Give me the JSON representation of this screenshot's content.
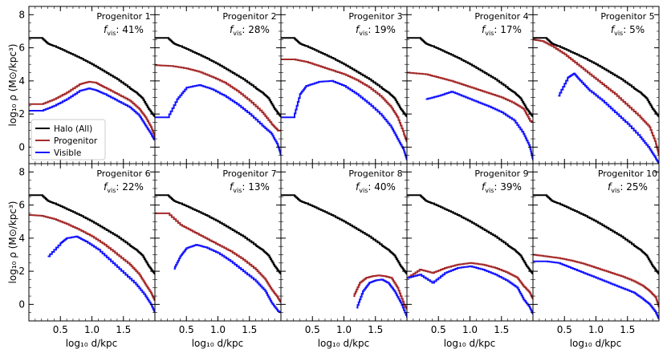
{
  "figure": {
    "ylabel": "log₁₀ ρ (M⊙/kpc³)",
    "xlabel": "log₁₀ d/kpc",
    "legend": {
      "placement": "lower-left of Progenitor 1 panel",
      "entries": [
        "Halo (All)",
        "Progenitor",
        "Visible"
      ]
    },
    "colors": {
      "halo": "#000000",
      "progenitor": "#a52a2a",
      "visible": "#1414ff"
    }
  },
  "chart_data": {
    "type": "line",
    "layout": "2 rows × 5 columns, shared axes",
    "xlim": [
      0.0,
      2.0
    ],
    "ylim": [
      -1.0,
      8.5
    ],
    "xticks": [
      0.5,
      1.0,
      1.5
    ],
    "xtick_labels": [
      "0.5",
      "1.0",
      "1.5"
    ],
    "yticks": [
      0,
      2,
      4,
      6,
      8
    ],
    "ytick_labels": [
      "0",
      "2",
      "4",
      "6",
      "8"
    ],
    "halo": {
      "x": [
        0.0,
        0.2,
        0.3,
        0.4,
        0.6,
        0.8,
        1.0,
        1.2,
        1.4,
        1.6,
        1.7,
        1.8,
        1.9,
        2.0
      ],
      "y": [
        6.6,
        6.6,
        6.25,
        6.1,
        5.75,
        5.4,
        5.0,
        4.55,
        4.1,
        3.55,
        3.3,
        2.95,
        2.3,
        1.8
      ]
    },
    "panels": [
      {
        "title": "Progenitor 1",
        "fvis": ": 41%",
        "progenitor": {
          "x": [
            0.0,
            0.2,
            0.4,
            0.6,
            0.8,
            0.95,
            1.05,
            1.2,
            1.4,
            1.6,
            1.75,
            1.85,
            1.95,
            2.0
          ],
          "y": [
            2.6,
            2.6,
            2.9,
            3.3,
            3.8,
            3.95,
            3.9,
            3.6,
            3.2,
            2.8,
            2.3,
            1.8,
            1.1,
            0.6
          ]
        },
        "visible": {
          "x": [
            0.0,
            0.2,
            0.4,
            0.6,
            0.8,
            0.95,
            1.05,
            1.2,
            1.4,
            1.6,
            1.75,
            1.85,
            1.95,
            2.0
          ],
          "y": [
            2.2,
            2.2,
            2.5,
            2.9,
            3.4,
            3.55,
            3.45,
            3.2,
            2.8,
            2.4,
            1.9,
            1.3,
            0.7,
            0.4
          ]
        }
      },
      {
        "title": "Progenitor 2",
        "fvis": ": 28%",
        "progenitor": {
          "x": [
            0.0,
            0.25,
            0.5,
            0.7,
            0.9,
            1.1,
            1.3,
            1.5,
            1.7,
            1.85,
            1.95,
            2.0
          ],
          "y": [
            4.95,
            4.9,
            4.75,
            4.55,
            4.25,
            3.9,
            3.4,
            2.8,
            2.1,
            1.4,
            1.0,
            1.0
          ]
        },
        "visible": {
          "x": [
            0.0,
            0.2,
            0.35,
            0.5,
            0.7,
            0.9,
            1.1,
            1.3,
            1.5,
            1.7,
            1.85,
            1.95,
            2.0
          ],
          "y": [
            1.8,
            1.8,
            2.9,
            3.6,
            3.75,
            3.5,
            3.1,
            2.6,
            2.0,
            1.3,
            0.8,
            0.1,
            -0.5
          ]
        }
      },
      {
        "title": "Progenitor 3",
        "fvis": ": 19%",
        "progenitor": {
          "x": [
            0.0,
            0.2,
            0.4,
            0.6,
            0.8,
            1.0,
            1.2,
            1.4,
            1.6,
            1.75,
            1.85,
            1.95,
            2.0
          ],
          "y": [
            5.3,
            5.3,
            5.15,
            4.9,
            4.65,
            4.4,
            4.05,
            3.6,
            3.0,
            2.4,
            1.8,
            0.8,
            0.3
          ]
        },
        "visible": {
          "x": [
            0.0,
            0.2,
            0.3,
            0.4,
            0.6,
            0.8,
            1.0,
            1.2,
            1.4,
            1.6,
            1.75,
            1.85,
            1.95,
            2.0
          ],
          "y": [
            1.8,
            1.8,
            3.2,
            3.7,
            3.95,
            4.0,
            3.7,
            3.2,
            2.6,
            1.9,
            1.2,
            0.5,
            -0.2,
            -0.8
          ]
        }
      },
      {
        "title": "Progenitor 4",
        "fvis": ": 17%",
        "progenitor": {
          "x": [
            0.0,
            0.3,
            0.5,
            0.7,
            0.9,
            1.1,
            1.3,
            1.5,
            1.7,
            1.85,
            1.95,
            2.0
          ],
          "y": [
            4.5,
            4.4,
            4.2,
            4.0,
            3.75,
            3.5,
            3.25,
            3.0,
            2.65,
            2.3,
            1.6,
            1.5
          ]
        },
        "visible": {
          "x": [
            0.3,
            0.5,
            0.7,
            0.9,
            1.1,
            1.3,
            1.5,
            1.7,
            1.85,
            1.95,
            2.0
          ],
          "y": [
            2.9,
            3.1,
            3.35,
            3.05,
            2.75,
            2.45,
            2.1,
            1.6,
            0.8,
            0.0,
            -0.8
          ]
        }
      },
      {
        "title": "Progenitor 5",
        "fvis": ": 5%",
        "progenitor": {
          "x": [
            0.0,
            0.15,
            0.3,
            0.5,
            0.7,
            0.9,
            1.1,
            1.3,
            1.5,
            1.7,
            1.85,
            1.95,
            2.0
          ],
          "y": [
            6.5,
            6.4,
            6.1,
            5.6,
            5.0,
            4.4,
            3.8,
            3.2,
            2.5,
            1.8,
            1.2,
            0.2,
            -0.5
          ]
        },
        "visible": {
          "x": [
            0.4,
            0.55,
            0.65,
            0.75,
            0.9,
            1.1,
            1.3,
            1.5,
            1.7,
            1.85,
            1.95,
            2.0
          ],
          "y": [
            3.1,
            4.2,
            4.45,
            4.0,
            3.4,
            2.8,
            2.1,
            1.4,
            0.6,
            -0.1,
            -0.7,
            -1.0
          ]
        }
      },
      {
        "title": "Progenitor 6",
        "fvis": ": 22%",
        "progenitor": {
          "x": [
            0.0,
            0.2,
            0.4,
            0.6,
            0.8,
            1.0,
            1.2,
            1.4,
            1.6,
            1.75,
            1.85,
            1.95,
            2.0
          ],
          "y": [
            5.4,
            5.35,
            5.15,
            4.85,
            4.5,
            4.1,
            3.6,
            3.0,
            2.4,
            1.8,
            1.2,
            0.6,
            0.2
          ]
        },
        "visible": {
          "x": [
            0.3,
            0.5,
            0.6,
            0.75,
            0.9,
            1.1,
            1.3,
            1.5,
            1.7,
            1.85,
            1.95,
            2.0
          ],
          "y": [
            2.9,
            3.7,
            4.0,
            4.1,
            3.8,
            3.3,
            2.6,
            1.9,
            1.2,
            0.5,
            -0.1,
            -0.5
          ]
        }
      },
      {
        "title": "Progenitor 7",
        "fvis": ": 13%",
        "progenitor": {
          "x": [
            0.0,
            0.2,
            0.4,
            0.6,
            0.8,
            1.0,
            1.2,
            1.4,
            1.6,
            1.75,
            1.85,
            1.95,
            2.0
          ],
          "y": [
            5.5,
            5.5,
            4.8,
            4.4,
            4.0,
            3.6,
            3.2,
            2.7,
            2.1,
            1.5,
            0.9,
            0.4,
            0.1
          ]
        },
        "visible": {
          "x": [
            0.3,
            0.4,
            0.5,
            0.65,
            0.8,
            1.0,
            1.2,
            1.4,
            1.6,
            1.75,
            1.85,
            1.95,
            2.0
          ],
          "y": [
            2.15,
            2.9,
            3.4,
            3.6,
            3.45,
            3.1,
            2.6,
            2.0,
            1.4,
            0.8,
            0.1,
            -0.4,
            -0.5
          ]
        }
      },
      {
        "title": "Progenitor 8",
        "fvis": ": 40%",
        "progenitor": {
          "x": [
            1.15,
            1.25,
            1.35,
            1.45,
            1.55,
            1.65,
            1.75,
            1.85,
            1.95,
            2.0
          ],
          "y": [
            0.5,
            1.3,
            1.6,
            1.7,
            1.75,
            1.7,
            1.6,
            1.0,
            0.0,
            -0.3
          ]
        },
        "visible": {
          "x": [
            1.2,
            1.3,
            1.4,
            1.5,
            1.6,
            1.7,
            1.8,
            1.9,
            2.0
          ],
          "y": [
            -0.2,
            0.8,
            1.3,
            1.45,
            1.5,
            1.3,
            0.8,
            0.1,
            -0.8
          ]
        }
      },
      {
        "title": "Progenitor 9",
        "fvis": ": 39%",
        "progenitor": {
          "x": [
            0.0,
            0.2,
            0.4,
            0.6,
            0.8,
            1.0,
            1.2,
            1.4,
            1.6,
            1.75,
            1.85,
            1.95,
            2.0
          ],
          "y": [
            1.6,
            2.1,
            1.9,
            2.2,
            2.4,
            2.5,
            2.4,
            2.2,
            1.9,
            1.6,
            1.1,
            0.7,
            0.3
          ]
        },
        "visible": {
          "x": [
            0.0,
            0.2,
            0.4,
            0.6,
            0.8,
            1.0,
            1.2,
            1.4,
            1.6,
            1.75,
            1.85,
            1.95,
            2.0
          ],
          "y": [
            1.6,
            1.8,
            1.3,
            1.9,
            2.2,
            2.3,
            2.1,
            1.8,
            1.4,
            1.0,
            0.3,
            -0.2,
            -0.6
          ]
        }
      },
      {
        "title": "Progenitor 10",
        "fvis": ": 25%",
        "progenitor": {
          "x": [
            0.0,
            0.2,
            0.4,
            0.6,
            0.8,
            1.0,
            1.2,
            1.4,
            1.6,
            1.75,
            1.85,
            1.95,
            2.0
          ],
          "y": [
            3.0,
            2.9,
            2.8,
            2.65,
            2.45,
            2.2,
            1.95,
            1.7,
            1.4,
            1.1,
            0.8,
            0.4,
            -0.2
          ]
        },
        "visible": {
          "x": [
            0.0,
            0.2,
            0.4,
            0.6,
            0.8,
            1.0,
            1.2,
            1.4,
            1.6,
            1.75,
            1.85,
            1.95,
            2.0
          ],
          "y": [
            2.6,
            2.6,
            2.5,
            2.2,
            1.9,
            1.6,
            1.3,
            1.0,
            0.7,
            0.3,
            0.0,
            -0.5,
            -0.9
          ]
        }
      }
    ]
  }
}
